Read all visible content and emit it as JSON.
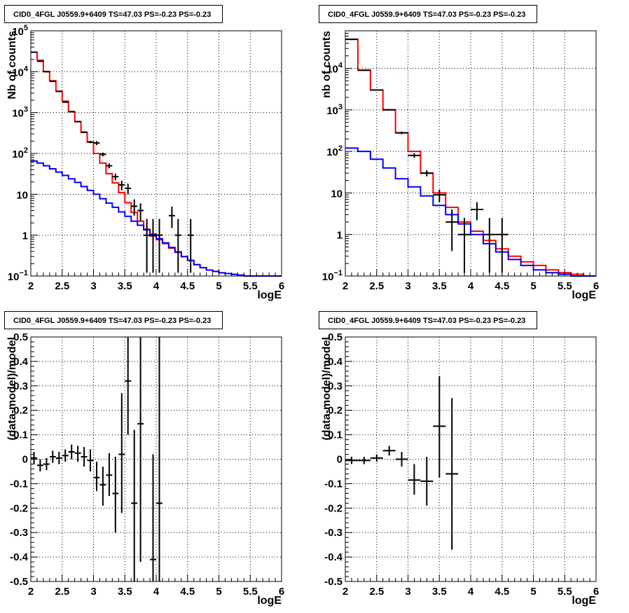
{
  "chart_data": [
    {
      "id": "counts-all",
      "type": "histogram-log",
      "title": "CID0_4FGL J0559.9+6409 TS=47.03 PS=-0.23 PS=-0.23",
      "xlabel": "logE",
      "ylabel": "Nb of counts",
      "xlim": [
        2,
        6
      ],
      "ylim": [
        0.1,
        100000
      ],
      "yscale": "log",
      "grid": true,
      "x_ticks": [
        "2",
        "2.5",
        "3",
        "3.5",
        "4",
        "4.5",
        "5",
        "5.5",
        "6"
      ],
      "y_ticks": [
        {
          "v": 0.1,
          "label": "10",
          "exp": "−1"
        },
        {
          "v": 1,
          "label": "1"
        },
        {
          "v": 10,
          "label": "10"
        },
        {
          "v": 100,
          "label": "10",
          "exp": "2"
        },
        {
          "v": 1000,
          "label": "10",
          "exp": "3"
        },
        {
          "v": 10000,
          "label": "10",
          "exp": "4"
        },
        {
          "v": 100000,
          "label": "10",
          "exp": "5"
        }
      ],
      "series": [
        {
          "kind": "step",
          "color": "#ff0000",
          "edges": [
            2.0,
            2.1,
            2.2,
            2.3,
            2.4,
            2.5,
            2.6,
            2.7,
            2.8,
            2.9,
            3.0,
            3.1,
            3.2,
            3.3,
            3.4,
            3.5,
            3.6,
            3.7,
            3.8,
            3.9,
            4.0,
            4.1,
            4.2,
            4.3,
            4.4,
            4.5,
            4.6,
            4.7,
            4.8,
            4.9,
            5.0,
            5.1,
            5.2,
            5.3,
            5.4,
            5.5,
            5.6,
            5.7,
            5.8,
            5.9,
            6.0
          ],
          "values": [
            30000,
            19000,
            10000,
            6000,
            3300,
            1900,
            1050,
            600,
            330,
            190,
            100,
            58,
            32,
            19,
            11,
            6.2,
            3.6,
            2.2,
            1.4,
            0.95,
            0.78,
            0.62,
            0.48,
            0.38,
            0.3,
            0.24,
            0.19,
            0.16,
            0.14,
            0.13,
            0.12,
            0.115,
            0.11,
            0.105,
            0.1,
            0.1,
            0.1,
            0.1,
            0.1,
            0.1
          ]
        },
        {
          "kind": "step",
          "color": "#0000ff",
          "edges": [
            2.0,
            2.1,
            2.2,
            2.3,
            2.4,
            2.5,
            2.6,
            2.7,
            2.8,
            2.9,
            3.0,
            3.1,
            3.2,
            3.3,
            3.4,
            3.5,
            3.6,
            3.7,
            3.8,
            3.9,
            4.0,
            4.1,
            4.2,
            4.3,
            4.4,
            4.5,
            4.6,
            4.7,
            4.8,
            4.9,
            5.0,
            5.1,
            5.2,
            5.3,
            5.4,
            5.5,
            5.6,
            5.7,
            5.8,
            5.9,
            6.0
          ],
          "values": [
            65,
            58,
            50,
            42,
            35,
            29,
            24,
            19.5,
            15.5,
            12.5,
            10,
            7.8,
            6.1,
            4.8,
            3.7,
            2.9,
            2.2,
            1.75,
            1.35,
            1.05,
            0.82,
            0.65,
            0.5,
            0.39,
            0.3,
            0.24,
            0.19,
            0.16,
            0.14,
            0.13,
            0.12,
            0.115,
            0.11,
            0.105,
            0.1,
            0.1,
            0.1,
            0.1,
            0.1,
            0.1
          ]
        },
        {
          "kind": "points",
          "color": "#000000",
          "x": [
            2.05,
            2.15,
            2.25,
            2.35,
            2.45,
            2.55,
            2.65,
            2.75,
            2.85,
            2.95,
            3.05,
            3.15,
            3.25,
            3.35,
            3.45,
            3.55,
            3.65,
            3.75,
            3.85,
            3.95,
            4.05,
            4.25,
            4.35,
            4.55
          ],
          "y": [
            30000,
            18000,
            10000,
            5800,
            3300,
            1800,
            1050,
            600,
            330,
            190,
            180,
            95,
            50,
            27,
            17,
            14,
            5.1,
            4,
            1,
            1,
            1,
            3,
            1,
            1
          ],
          "ylow": [
            29000,
            17500,
            9800,
            5700,
            3200,
            1750,
            1020,
            580,
            315,
            178,
            160,
            85,
            43,
            22,
            12.5,
            10,
            3,
            2.2,
            0.12,
            0.12,
            0.12,
            1.5,
            0.12,
            0.12
          ],
          "yhigh": [
            31000,
            18500,
            10200,
            5900,
            3400,
            1850,
            1080,
            620,
            345,
            202,
            200,
            105,
            57,
            32,
            21.5,
            18,
            7.5,
            6,
            2.5,
            2.5,
            2.5,
            5,
            2.5,
            2.5
          ],
          "xerr": 0.05
        }
      ]
    },
    {
      "id": "counts-zoom",
      "type": "histogram-log",
      "title": "CID0_4FGL J0559.9+6409 TS=47.03 PS=-0.23 PS=-0.23",
      "xlabel": "logE",
      "ylabel": "nb of counts",
      "xlim": [
        2,
        6
      ],
      "ylim": [
        0.1,
        80000
      ],
      "yscale": "log",
      "grid": true,
      "x_ticks": [
        "2",
        "2.5",
        "3",
        "3.5",
        "4",
        "4.5",
        "5",
        "5.5",
        "6"
      ],
      "y_ticks": [
        {
          "v": 0.1,
          "label": "10",
          "exp": "−1"
        },
        {
          "v": 1,
          "label": "1"
        },
        {
          "v": 10,
          "label": "10"
        },
        {
          "v": 100,
          "label": "10",
          "exp": "2"
        },
        {
          "v": 1000,
          "label": "10",
          "exp": "3"
        },
        {
          "v": 10000,
          "label": "10",
          "exp": "4"
        }
      ],
      "series": [
        {
          "kind": "step",
          "color": "#ff0000",
          "edges": [
            2.0,
            2.2,
            2.4,
            2.6,
            2.8,
            3.0,
            3.2,
            3.4,
            3.6,
            3.8,
            4.0,
            4.2,
            4.4,
            4.6,
            4.8,
            5.0,
            5.2,
            5.4,
            5.6,
            5.8,
            6.0
          ],
          "values": [
            50000,
            9000,
            3000,
            1000,
            280,
            100,
            30,
            10,
            4.5,
            2,
            1.2,
            0.72,
            0.45,
            0.3,
            0.22,
            0.18,
            0.14,
            0.12,
            0.11,
            0.1
          ]
        },
        {
          "kind": "step",
          "color": "#0000ff",
          "edges": [
            2.0,
            2.2,
            2.4,
            2.6,
            2.8,
            3.0,
            3.2,
            3.4,
            3.6,
            3.8,
            4.0,
            4.2,
            4.4,
            4.6,
            4.8,
            5.0,
            5.2,
            5.4,
            5.6,
            5.8,
            6.0
          ],
          "values": [
            120,
            100,
            65,
            40,
            22,
            14,
            8.5,
            5,
            3,
            1.8,
            1.0,
            0.6,
            0.38,
            0.25,
            0.18,
            0.14,
            0.12,
            0.11,
            0.1,
            0.1
          ]
        },
        {
          "kind": "points",
          "color": "#000000",
          "x": [
            2.1,
            2.3,
            2.5,
            2.7,
            2.9,
            3.1,
            3.3,
            3.5,
            3.7,
            3.9,
            4.1,
            4.3,
            4.5
          ],
          "y": [
            50000,
            9000,
            3000,
            1000,
            280,
            80,
            30,
            9,
            2,
            1,
            4,
            1,
            1
          ],
          "ylow": [
            49000,
            8800,
            2900,
            960,
            260,
            70,
            25,
            6,
            0.4,
            0.12,
            2.2,
            0.12,
            0.12
          ],
          "yhigh": [
            51000,
            9200,
            3100,
            1040,
            300,
            90,
            35,
            12,
            4,
            2.5,
            6,
            2.5,
            2.5
          ],
          "xerr": 0.1
        }
      ]
    },
    {
      "id": "residuals-all",
      "type": "scatter-errorbars",
      "title": "CID0_4FGL J0559.9+6409 TS=47.03 PS=-0.23 PS=-0.23",
      "xlabel": "logE",
      "ylabel": "(data-model)/model",
      "xlim": [
        2,
        6
      ],
      "ylim": [
        -0.5,
        0.5
      ],
      "grid": true,
      "x_ticks": [
        "2",
        "2.5",
        "3",
        "3.5",
        "4",
        "4.5",
        "5",
        "5.5",
        "6"
      ],
      "y_ticks": [
        "-0.5",
        "-0.4",
        "-0.3",
        "-0.2",
        "-0.1",
        "0",
        "0.1",
        "0.2",
        "0.3",
        "0.4",
        "0.5"
      ],
      "series": [
        {
          "kind": "points",
          "color": "#000000",
          "x": [
            2.05,
            2.15,
            2.25,
            2.35,
            2.45,
            2.55,
            2.65,
            2.75,
            2.85,
            2.95,
            3.05,
            3.15,
            3.25,
            3.35,
            3.45,
            3.55,
            3.65,
            3.75,
            3.95,
            4.05
          ],
          "y": [
            0.005,
            -0.025,
            -0.02,
            0.01,
            0.005,
            0.015,
            0.03,
            0.025,
            0.01,
            -0.005,
            -0.075,
            -0.105,
            -0.065,
            -0.14,
            0.02,
            0.32,
            -0.18,
            0.145,
            -0.41,
            -0.18
          ],
          "ylow": [
            -0.02,
            -0.05,
            -0.045,
            -0.015,
            -0.02,
            -0.01,
            0.0,
            -0.01,
            -0.03,
            -0.05,
            -0.13,
            -0.19,
            -0.15,
            -0.3,
            -0.22,
            0.1,
            -0.5,
            -0.42,
            -0.5,
            -0.5
          ],
          "yhigh": [
            0.03,
            0.0,
            0.005,
            0.035,
            0.03,
            0.04,
            0.06,
            0.055,
            0.05,
            0.04,
            -0.01,
            -0.03,
            0.025,
            0.01,
            0.27,
            0.5,
            0.12,
            0.5,
            0.02,
            0.5
          ],
          "xerr": 0.05
        }
      ]
    },
    {
      "id": "residuals-zoom",
      "type": "scatter-errorbars",
      "title": "CID0_4FGL J0559.9+6409 TS=47.03 PS=-0.23 PS=-0.23",
      "xlabel": "logE",
      "ylabel": "(data-model)/model",
      "xlim": [
        2,
        6
      ],
      "ylim": [
        -0.5,
        0.5
      ],
      "grid": true,
      "x_ticks": [
        "2",
        "2.5",
        "3",
        "3.5",
        "4",
        "4.5",
        "5",
        "5.5",
        "6"
      ],
      "y_ticks": [
        "-0.5",
        "-0.4",
        "-0.3",
        "-0.2",
        "-0.1",
        "0",
        "0.1",
        "0.2",
        "0.3",
        "0.4",
        "0.5"
      ],
      "series": [
        {
          "kind": "points",
          "color": "#000000",
          "x": [
            2.1,
            2.3,
            2.5,
            2.7,
            2.9,
            3.1,
            3.3,
            3.5,
            3.7
          ],
          "y": [
            -0.005,
            -0.005,
            0.005,
            0.035,
            0.0,
            -0.085,
            -0.09,
            0.135,
            -0.06
          ],
          "ylow": [
            -0.02,
            -0.02,
            -0.01,
            0.015,
            -0.03,
            -0.145,
            -0.19,
            -0.075,
            -0.37
          ],
          "yhigh": [
            0.01,
            0.01,
            0.02,
            0.055,
            0.03,
            -0.02,
            0.01,
            0.34,
            0.25
          ],
          "xerr": 0.1
        }
      ]
    }
  ]
}
